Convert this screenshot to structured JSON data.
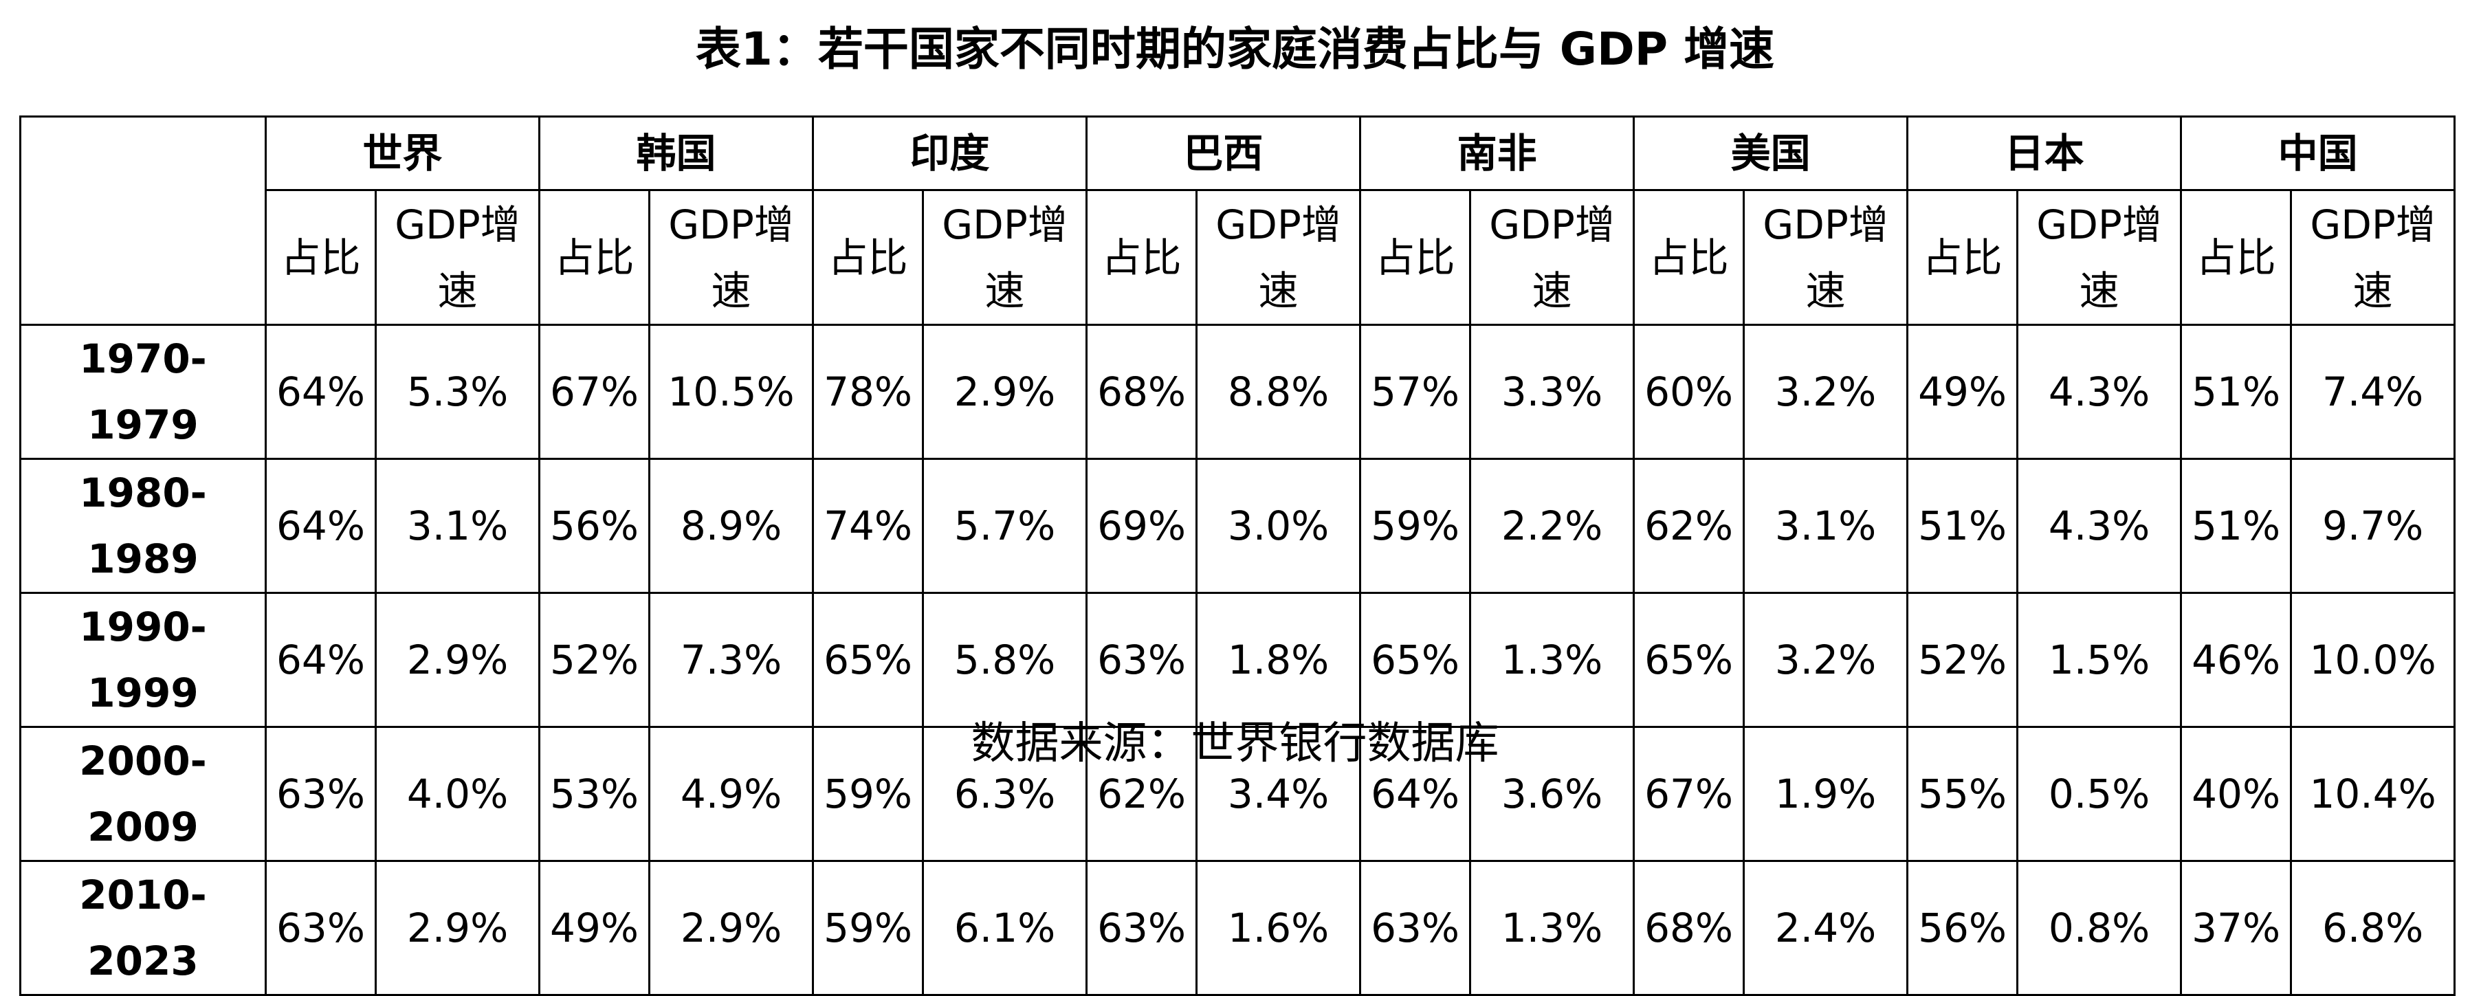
{
  "title": "表1：若干国家不同时期的家庭消费占比与 GDP 增速",
  "table": {
    "countries": [
      {
        "name": "世界",
        "sub": [
          "占比",
          "GDP增速"
        ]
      },
      {
        "name": "韩国",
        "sub": [
          "占比",
          "GDP增速"
        ]
      },
      {
        "name": "印度",
        "sub": [
          "占比",
          "GDP增速"
        ]
      },
      {
        "name": "巴西",
        "sub": [
          "占比",
          "GDP增速"
        ]
      },
      {
        "name": "南非",
        "sub": [
          "占比",
          "GDP增速"
        ]
      },
      {
        "name": "美国",
        "sub": [
          "占比",
          "GDP增速"
        ]
      },
      {
        "name": "日本",
        "sub": [
          "占比",
          "GDP增速"
        ]
      },
      {
        "name": "中国",
        "sub": [
          "占比",
          "GDP增速"
        ]
      }
    ],
    "rows": [
      {
        "period": "1970-1979",
        "values": [
          "64%",
          "5.3%",
          "67%",
          "10.5%",
          "78%",
          "2.9%",
          "68%",
          "8.8%",
          "57%",
          "3.3%",
          "60%",
          "3.2%",
          "49%",
          "4.3%",
          "51%",
          "7.4%"
        ]
      },
      {
        "period": "1980-1989",
        "values": [
          "64%",
          "3.1%",
          "56%",
          "8.9%",
          "74%",
          "5.7%",
          "69%",
          "3.0%",
          "59%",
          "2.2%",
          "62%",
          "3.1%",
          "51%",
          "4.3%",
          "51%",
          "9.7%"
        ]
      },
      {
        "period": "1990-1999",
        "values": [
          "64%",
          "2.9%",
          "52%",
          "7.3%",
          "65%",
          "5.8%",
          "63%",
          "1.8%",
          "65%",
          "1.3%",
          "65%",
          "3.2%",
          "52%",
          "1.5%",
          "46%",
          "10.0%"
        ]
      },
      {
        "period": "2000-2009",
        "values": [
          "63%",
          "4.0%",
          "53%",
          "4.9%",
          "59%",
          "6.3%",
          "62%",
          "3.4%",
          "64%",
          "3.6%",
          "67%",
          "1.9%",
          "55%",
          "0.5%",
          "40%",
          "10.4%"
        ]
      },
      {
        "period": "2010-2023",
        "values": [
          "63%",
          "2.9%",
          "49%",
          "2.9%",
          "59%",
          "6.1%",
          "63%",
          "1.6%",
          "63%",
          "1.3%",
          "68%",
          "2.4%",
          "56%",
          "0.8%",
          "37%",
          "6.8%"
        ]
      }
    ]
  },
  "source": "数据来源：世界银行数据库"
}
